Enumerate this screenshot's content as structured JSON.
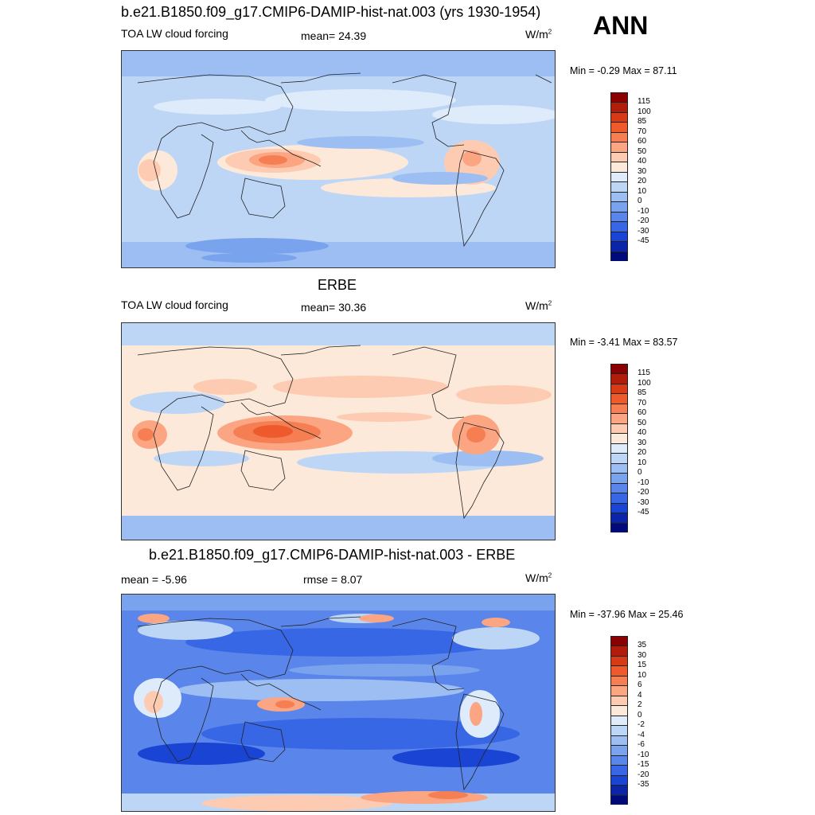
{
  "season": "ANN",
  "panels": [
    {
      "title": "b.e21.B1850.f09_g17.CMIP6-DAMIP-hist-nat.003 (yrs 1930-1954)",
      "left_label": "TOA LW cloud forcing",
      "center_label": "mean=  24.39",
      "units": "W/m",
      "units_sup": "2",
      "minmax": "Min =  -0.29 Max =  87.11",
      "colorbar": {
        "labels": [
          "115",
          "100",
          "85",
          "70",
          "60",
          "50",
          "40",
          "30",
          "20",
          "10",
          "0",
          "-10",
          "-20",
          "-30",
          "-45"
        ],
        "colors": [
          "#8b0000",
          "#b01e0b",
          "#d63a17",
          "#ee5a2c",
          "#f57f52",
          "#fba582",
          "#fdcbb2",
          "#fde9d9",
          "#deebfa",
          "#bed6f6",
          "#9cbef2",
          "#7aa3ee",
          "#5a86eb",
          "#3867e6",
          "#1a44d4",
          "#0b24a8",
          "#000a78"
        ]
      }
    },
    {
      "title": "ERBE",
      "left_label": "TOA LW cloud forcing",
      "center_label": "mean=  30.36",
      "units": "W/m",
      "units_sup": "2",
      "minmax": "Min =  -3.41 Max =  83.57",
      "colorbar": {
        "labels": [
          "115",
          "100",
          "85",
          "70",
          "60",
          "50",
          "40",
          "30",
          "20",
          "10",
          "0",
          "-10",
          "-20",
          "-30",
          "-45"
        ],
        "colors": [
          "#8b0000",
          "#b01e0b",
          "#d63a17",
          "#ee5a2c",
          "#f57f52",
          "#fba582",
          "#fdcbb2",
          "#fde9d9",
          "#deebfa",
          "#bed6f6",
          "#9cbef2",
          "#7aa3ee",
          "#5a86eb",
          "#3867e6",
          "#1a44d4",
          "#0b24a8",
          "#000a78"
        ]
      }
    },
    {
      "title": "b.e21.B1850.f09_g17.CMIP6-DAMIP-hist-nat.003 - ERBE",
      "left_label": "mean =  -5.96",
      "center_label": "rmse =   8.07",
      "units": "W/m",
      "units_sup": "2",
      "minmax": "Min = -37.96 Max =  25.46",
      "colorbar": {
        "labels": [
          "35",
          "30",
          "15",
          "10",
          "6",
          "4",
          "2",
          "0",
          "-2",
          "-4",
          "-6",
          "-10",
          "-15",
          "-20",
          "-35"
        ],
        "colors": [
          "#8b0000",
          "#b01e0b",
          "#d63a17",
          "#ee5a2c",
          "#f57f52",
          "#fba582",
          "#fdcbb2",
          "#fde9d9",
          "#deebfa",
          "#bed6f6",
          "#9cbef2",
          "#7aa3ee",
          "#5a86eb",
          "#3867e6",
          "#1a44d4",
          "#0b24a8",
          "#000a78"
        ]
      }
    }
  ]
}
